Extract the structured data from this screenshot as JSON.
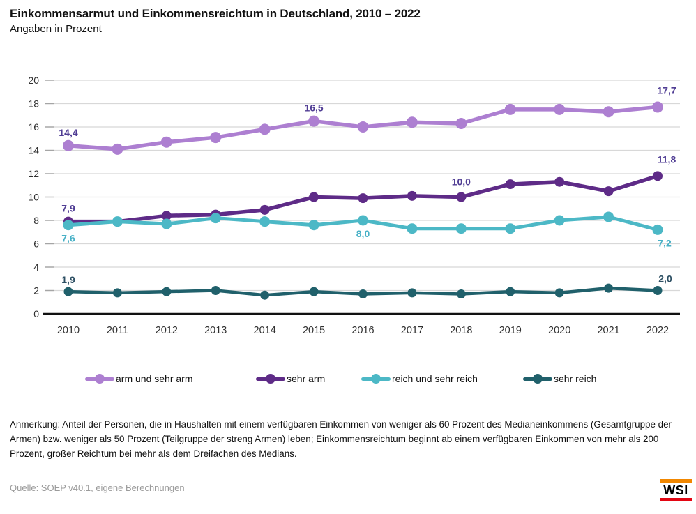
{
  "header": {
    "title": "Einkommensarmut und Einkommensreichtum in Deutschland, 2010 – 2022",
    "subtitle": "Angaben in Prozent"
  },
  "chart_data": {
    "type": "line",
    "title": "Einkommensarmut und Einkommensreichtum in Deutschland, 2010 – 2022",
    "subtitle": "Angaben in Prozent",
    "x": [
      "2010",
      "2011",
      "2012",
      "2013",
      "2014",
      "2015",
      "2016",
      "2017",
      "2018",
      "2019",
      "2020",
      "2021",
      "2022"
    ],
    "ylim": [
      0,
      20
    ],
    "ytick_step": 2,
    "grid": true,
    "legend_position": "bottom",
    "series": [
      {
        "name": "arm und sehr arm",
        "color": "#ad7fd1",
        "label_color": "#503d94",
        "marker_r": 8,
        "line_width": 5.5,
        "values": [
          14.4,
          14.1,
          14.7,
          15.1,
          15.8,
          16.5,
          16.0,
          16.4,
          16.3,
          17.5,
          17.5,
          17.3,
          17.7
        ],
        "point_labels": [
          {
            "i": 0,
            "text": "14,4",
            "pos": "above"
          },
          {
            "i": 5,
            "text": "16,5",
            "pos": "above"
          },
          {
            "i": 12,
            "text": "17,7",
            "pos": "above",
            "dx": 13,
            "dy": -19
          }
        ]
      },
      {
        "name": "sehr arm",
        "color": "#5e2b87",
        "label_color": "#503d94",
        "marker_r": 7,
        "line_width": 5.5,
        "values": [
          7.9,
          7.9,
          8.4,
          8.5,
          8.9,
          10.0,
          9.9,
          10.1,
          10.0,
          11.1,
          11.3,
          10.5,
          11.8
        ],
        "point_labels": [
          {
            "i": 0,
            "text": "7,9",
            "pos": "above"
          },
          {
            "i": 8,
            "text": "10,0",
            "pos": "above",
            "dy": -17
          },
          {
            "i": 12,
            "text": "11,8",
            "pos": "above",
            "dx": 13,
            "dy": -19
          }
        ]
      },
      {
        "name": "reich und sehr reich",
        "color": "#4cb8c6",
        "label_color": "#47b0c6",
        "marker_r": 7.5,
        "line_width": 5,
        "values": [
          7.6,
          7.9,
          7.7,
          8.2,
          7.9,
          7.6,
          8.0,
          7.3,
          7.3,
          7.3,
          8.0,
          8.3,
          7.2
        ],
        "point_labels": [
          {
            "i": 0,
            "text": "7,6",
            "pos": "below"
          },
          {
            "i": 6,
            "text": "8,0",
            "pos": "below"
          },
          {
            "i": 12,
            "text": "7,2",
            "pos": "below",
            "dx": 10
          }
        ]
      },
      {
        "name": "sehr reich",
        "color": "#20606b",
        "label_color": "#2d4f63",
        "marker_r": 6.5,
        "line_width": 4.5,
        "values": [
          1.9,
          1.8,
          1.9,
          2.0,
          1.6,
          1.9,
          1.7,
          1.8,
          1.7,
          1.9,
          1.8,
          2.2,
          2.0
        ],
        "point_labels": [
          {
            "i": 0,
            "text": "1,9",
            "pos": "above",
            "dy": -12
          },
          {
            "i": 12,
            "text": "2,0",
            "pos": "above",
            "dx": 11,
            "dy": -12
          }
        ]
      }
    ]
  },
  "note": "Anmerkung: Anteil der Personen, die in Haushalten mit einem verfügbaren Einkommen von weniger als 60 Prozent des Medianeinkommens (Gesamtgruppe der Armen) bzw. weniger als 50 Prozent (Teilgruppe der streng Armen) leben; Einkommensreichtum beginnt ab einem verfügbaren Einkommen von mehr als 200 Prozent, großer Reichtum bei mehr als dem Dreifachen des Medians.",
  "source": "Quelle: SOEP v40.1, eigene Berechnungen",
  "logo": {
    "text": "WSI",
    "top_bar_color": "#f18700",
    "bottom_bar_color": "#e30613"
  }
}
